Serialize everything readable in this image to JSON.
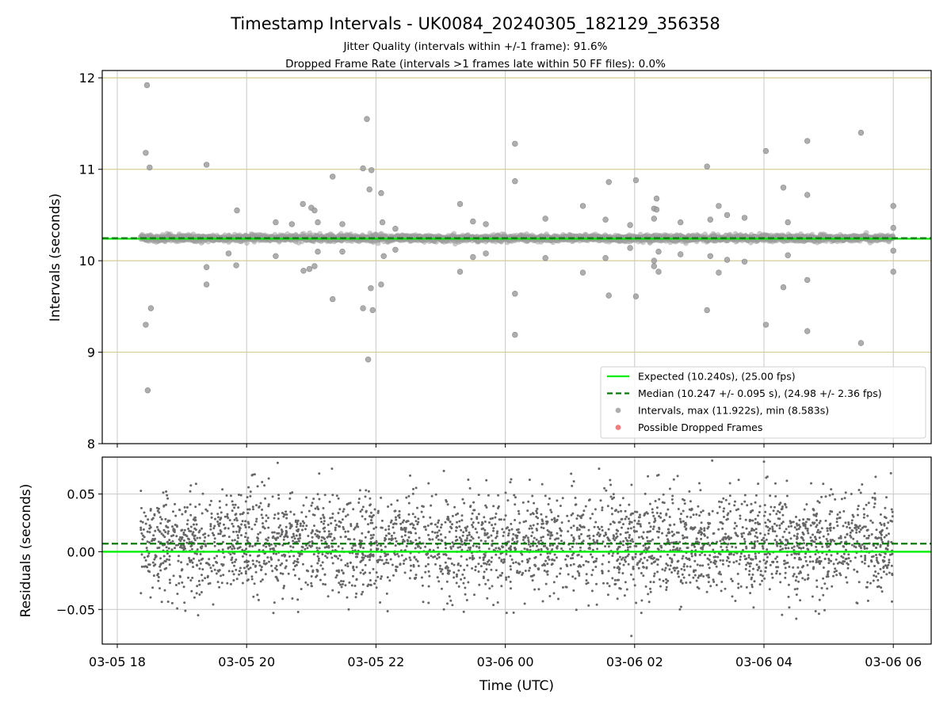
{
  "chart_data": {
    "type": "scatter",
    "title": "Timestamp Intervals - UK0084_20240305_182129_356358",
    "subtitle_lines": [
      "Jitter Quality (intervals within +/-1 frame): 91.6%",
      "Dropped Frame Rate (intervals >1 frames late within 50 FF files): 0.0%"
    ],
    "xlabel": "Time (UTC)",
    "x_start_hour": 18.36,
    "x_end_hour": 30.0,
    "xticks": [
      {
        "label": "03-05 18",
        "hour": 18
      },
      {
        "label": "03-05 20",
        "hour": 20
      },
      {
        "label": "03-05 22",
        "hour": 22
      },
      {
        "label": "03-06 00",
        "hour": 24
      },
      {
        "label": "03-06 02",
        "hour": 26
      },
      {
        "label": "03-06 04",
        "hour": 28
      },
      {
        "label": "03-06 06",
        "hour": 30
      }
    ],
    "top_panel": {
      "ylabel": "Intervals (seconds)",
      "ylim": [
        8,
        12.08
      ],
      "yticks": [
        "8",
        "9",
        "10",
        "11",
        "12"
      ],
      "expected_interval": 10.24,
      "median_interval": 10.247,
      "interval_std": 0.095,
      "outliers": [
        {
          "x": 18.46,
          "y": 11.92
        },
        {
          "x": 18.44,
          "y": 11.18
        },
        {
          "x": 18.5,
          "y": 11.02
        },
        {
          "x": 18.44,
          "y": 9.3
        },
        {
          "x": 18.52,
          "y": 9.48
        },
        {
          "x": 18.47,
          "y": 8.583
        },
        {
          "x": 19.38,
          "y": 11.05
        },
        {
          "x": 19.38,
          "y": 9.74
        },
        {
          "x": 19.38,
          "y": 9.93
        },
        {
          "x": 19.72,
          "y": 10.08
        },
        {
          "x": 19.85,
          "y": 10.55
        },
        {
          "x": 19.84,
          "y": 9.95
        },
        {
          "x": 20.45,
          "y": 10.05
        },
        {
          "x": 20.45,
          "y": 10.42
        },
        {
          "x": 20.7,
          "y": 10.4
        },
        {
          "x": 20.87,
          "y": 10.62
        },
        {
          "x": 20.88,
          "y": 9.89
        },
        {
          "x": 20.97,
          "y": 9.91
        },
        {
          "x": 21.0,
          "y": 10.58
        },
        {
          "x": 21.05,
          "y": 10.55
        },
        {
          "x": 21.1,
          "y": 10.42
        },
        {
          "x": 21.1,
          "y": 10.1
        },
        {
          "x": 21.05,
          "y": 9.94
        },
        {
          "x": 21.33,
          "y": 10.92
        },
        {
          "x": 21.33,
          "y": 9.58
        },
        {
          "x": 21.48,
          "y": 10.1
        },
        {
          "x": 21.48,
          "y": 10.4
        },
        {
          "x": 21.8,
          "y": 11.01
        },
        {
          "x": 21.86,
          "y": 11.55
        },
        {
          "x": 21.93,
          "y": 10.99
        },
        {
          "x": 21.9,
          "y": 10.78
        },
        {
          "x": 21.92,
          "y": 9.7
        },
        {
          "x": 21.8,
          "y": 9.48
        },
        {
          "x": 21.95,
          "y": 9.46
        },
        {
          "x": 21.88,
          "y": 8.92
        },
        {
          "x": 22.08,
          "y": 10.74
        },
        {
          "x": 22.1,
          "y": 10.42
        },
        {
          "x": 22.12,
          "y": 10.05
        },
        {
          "x": 22.08,
          "y": 9.74
        },
        {
          "x": 22.3,
          "y": 10.35
        },
        {
          "x": 22.3,
          "y": 10.12
        },
        {
          "x": 23.3,
          "y": 10.62
        },
        {
          "x": 23.3,
          "y": 9.88
        },
        {
          "x": 23.5,
          "y": 10.43
        },
        {
          "x": 23.5,
          "y": 10.04
        },
        {
          "x": 23.7,
          "y": 10.4
        },
        {
          "x": 23.7,
          "y": 10.08
        },
        {
          "x": 24.15,
          "y": 11.28
        },
        {
          "x": 24.15,
          "y": 10.87
        },
        {
          "x": 24.15,
          "y": 9.64
        },
        {
          "x": 24.15,
          "y": 9.19
        },
        {
          "x": 24.62,
          "y": 10.46
        },
        {
          "x": 24.62,
          "y": 10.03
        },
        {
          "x": 25.2,
          "y": 10.6
        },
        {
          "x": 25.2,
          "y": 9.87
        },
        {
          "x": 25.55,
          "y": 10.45
        },
        {
          "x": 25.55,
          "y": 10.03
        },
        {
          "x": 25.6,
          "y": 10.86
        },
        {
          "x": 25.6,
          "y": 9.62
        },
        {
          "x": 26.02,
          "y": 10.88
        },
        {
          "x": 26.02,
          "y": 9.61
        },
        {
          "x": 25.93,
          "y": 10.39
        },
        {
          "x": 25.93,
          "y": 10.14
        },
        {
          "x": 26.3,
          "y": 10.46
        },
        {
          "x": 26.3,
          "y": 10.57
        },
        {
          "x": 26.34,
          "y": 10.68
        },
        {
          "x": 26.34,
          "y": 10.56
        },
        {
          "x": 26.3,
          "y": 9.94
        },
        {
          "x": 26.3,
          "y": 10.0
        },
        {
          "x": 26.37,
          "y": 9.88
        },
        {
          "x": 26.37,
          "y": 10.1
        },
        {
          "x": 26.71,
          "y": 10.42
        },
        {
          "x": 26.71,
          "y": 10.07
        },
        {
          "x": 27.12,
          "y": 11.03
        },
        {
          "x": 27.12,
          "y": 9.46
        },
        {
          "x": 27.17,
          "y": 10.45
        },
        {
          "x": 27.17,
          "y": 10.05
        },
        {
          "x": 27.3,
          "y": 10.6
        },
        {
          "x": 27.3,
          "y": 9.87
        },
        {
          "x": 27.43,
          "y": 10.5
        },
        {
          "x": 27.43,
          "y": 10.01
        },
        {
          "x": 27.7,
          "y": 10.47
        },
        {
          "x": 27.7,
          "y": 9.99
        },
        {
          "x": 28.03,
          "y": 11.2
        },
        {
          "x": 28.03,
          "y": 9.3
        },
        {
          "x": 28.3,
          "y": 10.8
        },
        {
          "x": 28.3,
          "y": 9.71
        },
        {
          "x": 28.37,
          "y": 10.42
        },
        {
          "x": 28.37,
          "y": 10.06
        },
        {
          "x": 28.67,
          "y": 11.31
        },
        {
          "x": 28.67,
          "y": 10.72
        },
        {
          "x": 28.67,
          "y": 9.79
        },
        {
          "x": 28.67,
          "y": 9.23
        },
        {
          "x": 29.5,
          "y": 11.4
        },
        {
          "x": 29.5,
          "y": 9.1
        },
        {
          "x": 30.0,
          "y": 10.6
        },
        {
          "x": 30.0,
          "y": 10.36
        },
        {
          "x": 30.0,
          "y": 10.11
        },
        {
          "x": 30.0,
          "y": 9.88
        }
      ]
    },
    "bottom_panel": {
      "ylabel": "Residuals (seconds)",
      "ylim": [
        -0.08,
        0.082
      ],
      "yticks": [
        {
          "label": "0.05",
          "value": 0.05
        },
        {
          "label": "0.00",
          "value": 0.0
        },
        {
          "label": "−0.05",
          "value": -0.05
        }
      ],
      "expected_residual": 0.0,
      "median_residual": 0.007,
      "residual_std": 0.022,
      "extreme_points": [
        {
          "x": 20.48,
          "y": 0.077
        },
        {
          "x": 23.05,
          "y": 0.07
        },
        {
          "x": 23.05,
          "y": -0.05
        },
        {
          "x": 25.45,
          "y": 0.072
        },
        {
          "x": 25.95,
          "y": -0.073
        },
        {
          "x": 26.35,
          "y": 0.066
        },
        {
          "x": 27.2,
          "y": 0.079
        },
        {
          "x": 28.0,
          "y": 0.078
        },
        {
          "x": 28.5,
          "y": -0.058
        },
        {
          "x": 19.25,
          "y": -0.055
        },
        {
          "x": 21.32,
          "y": 0.072
        },
        {
          "x": 24.3,
          "y": -0.045
        },
        {
          "x": 26.7,
          "y": -0.05
        }
      ]
    },
    "legend": {
      "position": "lower-right",
      "entries": [
        {
          "label": "Expected (10.240s), (25.00 fps)",
          "style": "solid-line",
          "color": "#00ee00"
        },
        {
          "label": "Median (10.247 +/- 0.095 s), (24.98 +/- 2.36 fps)",
          "style": "dashed-line",
          "color": "#007a00"
        },
        {
          "label": "Intervals, max (11.922s), min (8.583s)",
          "style": "marker",
          "color": "#a0a0a0"
        },
        {
          "label": "Possible Dropped Frames",
          "style": "marker",
          "color": "#ee6666"
        }
      ]
    },
    "colors": {
      "expected": "#00ee00",
      "median": "#007a00",
      "points": "#a0a0a0",
      "residual_points": "#666666",
      "hgrid_top": "#d6cc96",
      "grid": "#c8c8c8"
    }
  }
}
